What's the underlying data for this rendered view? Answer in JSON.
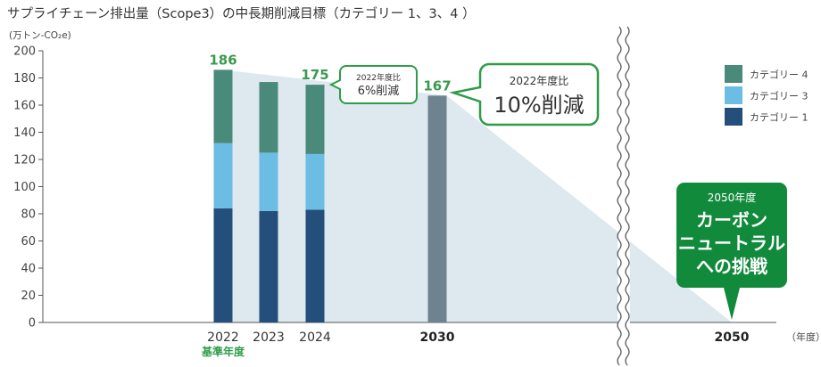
{
  "chart_data": {
    "type": "bar",
    "title": "サプライチェーン排出量（Scope3）の中長期削減目標（カテゴリー 1、3、4 ）",
    "ylabel": "(万トン-CO₂e)",
    "xlabel": "（年度）",
    "ylim": [
      0,
      200
    ],
    "yticks": [
      0,
      20,
      40,
      60,
      80,
      100,
      120,
      140,
      160,
      180,
      200
    ],
    "categories": [
      "2022",
      "2023",
      "2024",
      "2030",
      "2050"
    ],
    "base_year_label": "基準年度",
    "series": [
      {
        "name": "カテゴリー 1",
        "color": "#244f7a",
        "values": [
          84,
          82,
          83,
          null,
          null
        ]
      },
      {
        "name": "カテゴリー 3",
        "color": "#6bbde3",
        "values": [
          48,
          43,
          41,
          null,
          null
        ]
      },
      {
        "name": "カテゴリー 4",
        "color": "#4a8a7a",
        "values": [
          54,
          52,
          51,
          null,
          null
        ]
      }
    ],
    "target_2030": {
      "value": 167,
      "color": "#6e838f"
    },
    "totals": [
      "186",
      "",
      "175",
      "167",
      ""
    ],
    "legend_position": "top-right",
    "grid": false,
    "callouts": {
      "small": {
        "top": "2022年度比",
        "main": "6%削減"
      },
      "large": {
        "top": "2022年度比",
        "main": "10%削減"
      },
      "goal": {
        "top": "2050年度",
        "lines": [
          "カーボン",
          "ニュートラル",
          "への挑戦"
        ],
        "color": "#128a3c"
      }
    }
  }
}
